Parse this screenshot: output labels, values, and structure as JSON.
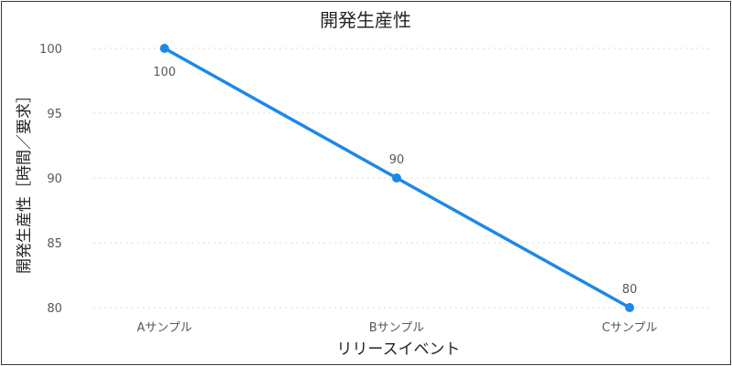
{
  "chart_data": {
    "type": "line",
    "title": "開発生産性",
    "xlabel": "リリースイベント",
    "ylabel": "開発生産性［時間／要求］",
    "categories": [
      "Aサンプル",
      "Bサンプル",
      "Cサンプル"
    ],
    "series": [
      {
        "values": [
          100,
          90,
          80
        ],
        "color": "#1e88e5"
      }
    ],
    "ylim": [
      80,
      100
    ],
    "yticks": [
      100,
      95,
      90,
      85,
      80
    ],
    "grid": true,
    "data_labels": true
  }
}
